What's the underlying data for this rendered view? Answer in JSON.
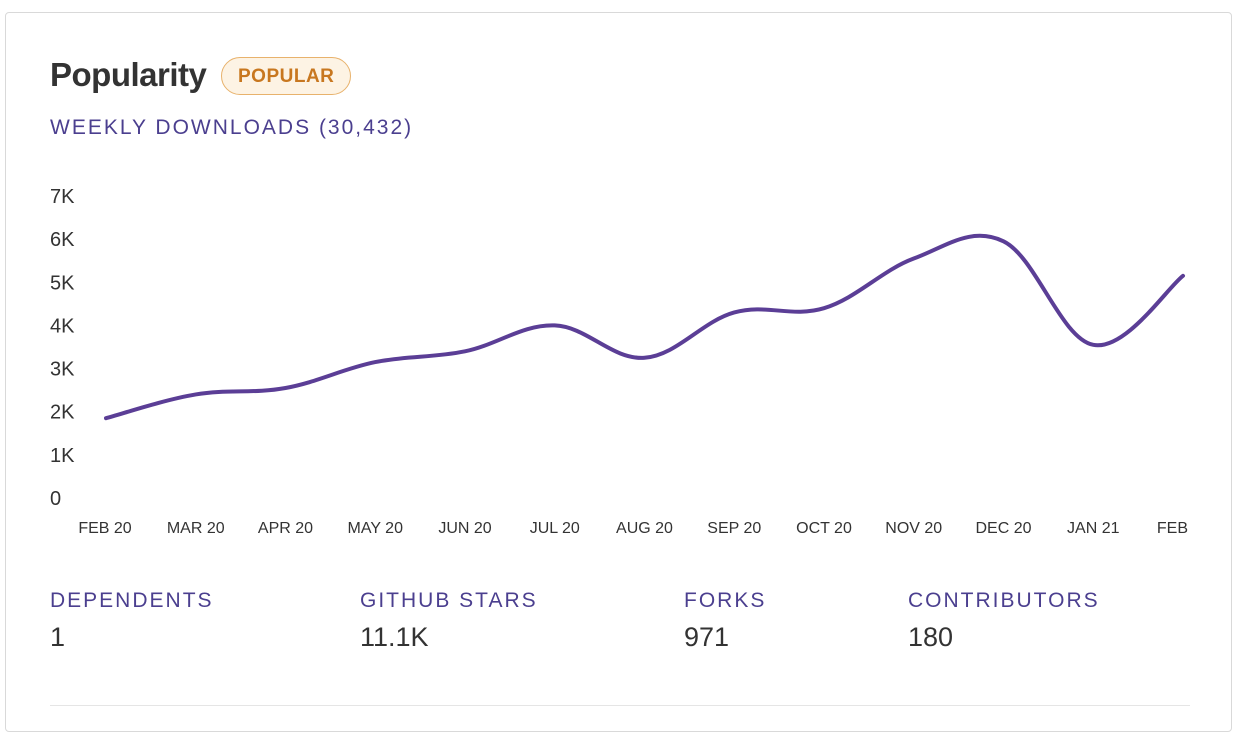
{
  "header": {
    "title": "Popularity",
    "badge": "POPULAR",
    "weekly_label": "WEEKLY DOWNLOADS (30,432)"
  },
  "colors": {
    "line": "#5b3e96",
    "label": "#4b3f8f",
    "badge_text": "#c8771f",
    "badge_bg": "#fdf3e4",
    "badge_border": "#e8b26c"
  },
  "chart_data": {
    "type": "line",
    "title": "",
    "xlabel": "",
    "ylabel": "",
    "ylim": [
      0,
      7000
    ],
    "grid": false,
    "legend": "none",
    "y_ticks": [
      0,
      1000,
      2000,
      3000,
      4000,
      5000,
      6000,
      7000
    ],
    "y_tick_labels": [
      "0",
      "1K",
      "2K",
      "3K",
      "4K",
      "5K",
      "6K",
      "7K"
    ],
    "x_tick_labels": [
      "FEB 20",
      "MAR 20",
      "APR 20",
      "MAY 20",
      "JUN 20",
      "JUL 20",
      "AUG 20",
      "SEP 20",
      "OCT 20",
      "NOV 20",
      "DEC 20",
      "JAN 21",
      "FEB"
    ],
    "series": [
      {
        "x": [
          "2020-02",
          "2020-03",
          "2020-04",
          "2020-05",
          "2020-06",
          "2020-07",
          "2020-08",
          "2020-09",
          "2020-10",
          "2020-11",
          "2020-12",
          "2021-01",
          "2021-02"
        ],
        "values": [
          1850,
          2400,
          2550,
          3150,
          3400,
          4000,
          3250,
          4300,
          4400,
          5550,
          5950,
          3550,
          5150
        ]
      }
    ]
  },
  "stats": [
    {
      "label": "DEPENDENTS",
      "value": "1"
    },
    {
      "label": "GITHUB STARS",
      "value": "11.1K"
    },
    {
      "label": "FORKS",
      "value": "971"
    },
    {
      "label": "CONTRIBUTORS",
      "value": "180"
    }
  ]
}
